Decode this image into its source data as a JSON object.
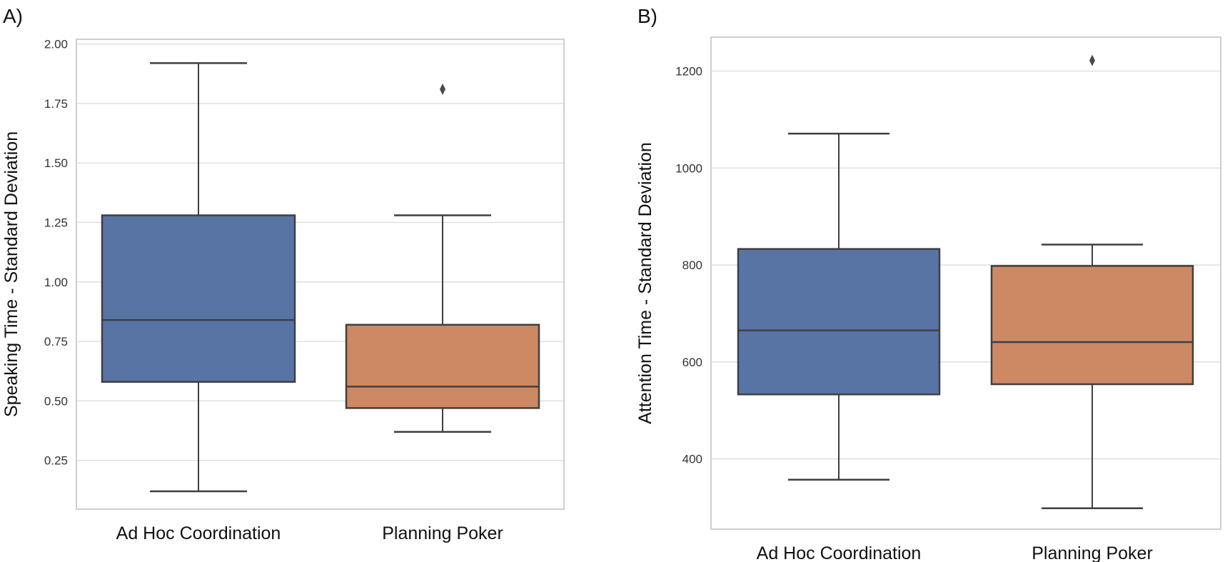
{
  "chart_data": [
    {
      "type": "box",
      "panel_label": "A)",
      "title": "",
      "xlabel": "",
      "ylabel": "Speaking Time - Standard Deviation",
      "ylim": [
        0.045,
        2.02
      ],
      "yticks": [
        0.25,
        0.5,
        0.75,
        1.0,
        1.25,
        1.5,
        1.75,
        2.0
      ],
      "ytick_labels": [
        "0.25",
        "0.50",
        "0.75",
        "1.00",
        "1.25",
        "1.50",
        "1.75",
        "2.00"
      ],
      "grid": true,
      "categories": [
        "Ad Hoc Coordination",
        "Planning Poker"
      ],
      "boxes": [
        {
          "name": "Ad Hoc Coordination",
          "color": "#5874a5",
          "whisker_low": 0.12,
          "q1": 0.58,
          "median": 0.84,
          "q3": 1.28,
          "whisker_high": 1.92,
          "fliers": []
        },
        {
          "name": "Planning Poker",
          "color": "#cc8963",
          "whisker_low": 0.37,
          "q1": 0.47,
          "median": 0.56,
          "q3": 0.82,
          "whisker_high": 1.28,
          "fliers": [
            1.81
          ]
        }
      ]
    },
    {
      "type": "box",
      "panel_label": "B)",
      "title": "",
      "xlabel": "",
      "ylabel": "Attention Time - Standard Deviation",
      "ylim": [
        255,
        1270
      ],
      "yticks": [
        400,
        600,
        800,
        1000,
        1200
      ],
      "ytick_labels": [
        "400",
        "600",
        "800",
        "1000",
        "1200"
      ],
      "grid": true,
      "categories": [
        "Ad Hoc Coordination",
        "Planning Poker"
      ],
      "boxes": [
        {
          "name": "Ad Hoc Coordination",
          "color": "#5874a5",
          "whisker_low": 357,
          "q1": 533,
          "median": 665,
          "q3": 833,
          "whisker_high": 1071,
          "fliers": []
        },
        {
          "name": "Planning Poker",
          "color": "#cc8963",
          "whisker_low": 298,
          "q1": 554,
          "median": 641,
          "q3": 798,
          "whisker_high": 842,
          "fliers": [
            1222
          ]
        }
      ]
    }
  ]
}
